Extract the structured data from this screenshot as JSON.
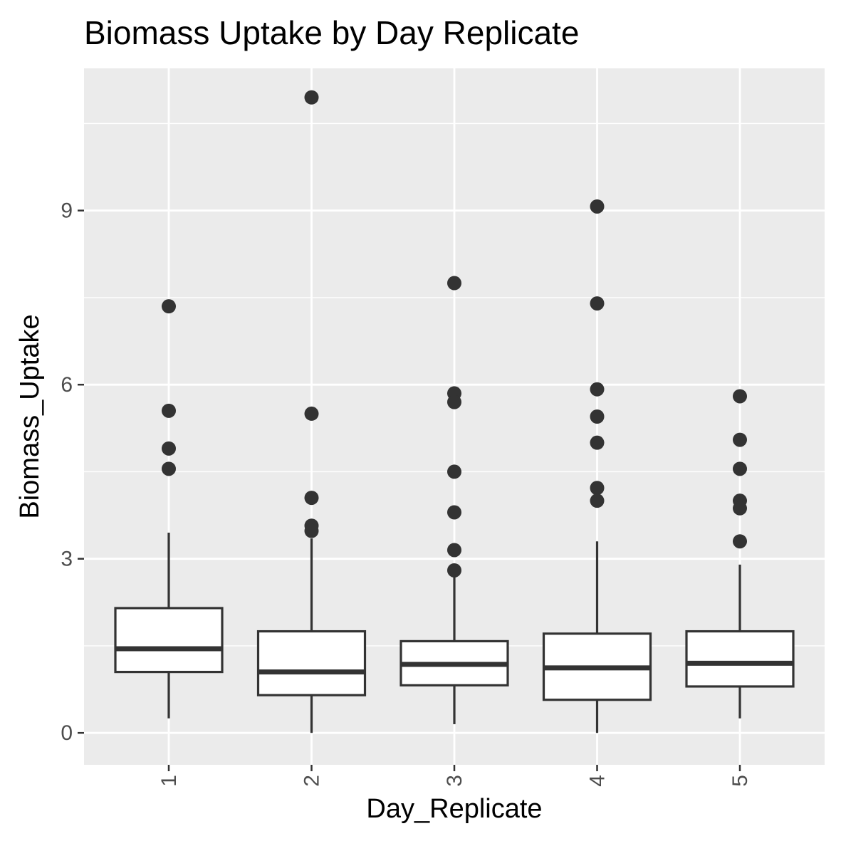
{
  "chart_data": {
    "type": "boxplot",
    "title": "Biomass Uptake by Day Replicate",
    "xlabel": "Day_Replicate",
    "ylabel": "Biomass_Uptake",
    "categories": [
      "1",
      "2",
      "3",
      "4",
      "5"
    ],
    "ylim": [
      -0.55,
      11.45
    ],
    "y_ticks": [
      0,
      3,
      6,
      9
    ],
    "y_tick_labels": [
      "0",
      "3",
      "6",
      "9"
    ],
    "grid": true,
    "boxes": [
      {
        "category": "1",
        "whisker_low": 0.25,
        "q1": 1.05,
        "median": 1.45,
        "q3": 2.15,
        "whisker_high": 3.45,
        "outliers": [
          7.35,
          5.55,
          4.9,
          4.55
        ]
      },
      {
        "category": "2",
        "whisker_low": 0.0,
        "q1": 0.65,
        "median": 1.05,
        "q3": 1.75,
        "whisker_high": 3.35,
        "outliers": [
          10.95,
          5.5,
          4.05,
          3.57,
          3.48
        ]
      },
      {
        "category": "3",
        "whisker_low": 0.15,
        "q1": 0.82,
        "median": 1.18,
        "q3": 1.58,
        "whisker_high": 2.75,
        "outliers": [
          7.75,
          5.85,
          5.7,
          4.5,
          3.8,
          3.15,
          2.8
        ]
      },
      {
        "category": "4",
        "whisker_low": 0.0,
        "q1": 0.57,
        "median": 1.12,
        "q3": 1.71,
        "whisker_high": 3.3,
        "outliers": [
          9.07,
          7.4,
          5.92,
          5.45,
          5.0,
          4.22,
          4.0
        ]
      },
      {
        "category": "5",
        "whisker_low": 0.25,
        "q1": 0.8,
        "median": 1.2,
        "q3": 1.75,
        "whisker_high": 2.9,
        "outliers": [
          5.8,
          5.05,
          4.55,
          4.0,
          3.87,
          3.3
        ]
      }
    ]
  }
}
